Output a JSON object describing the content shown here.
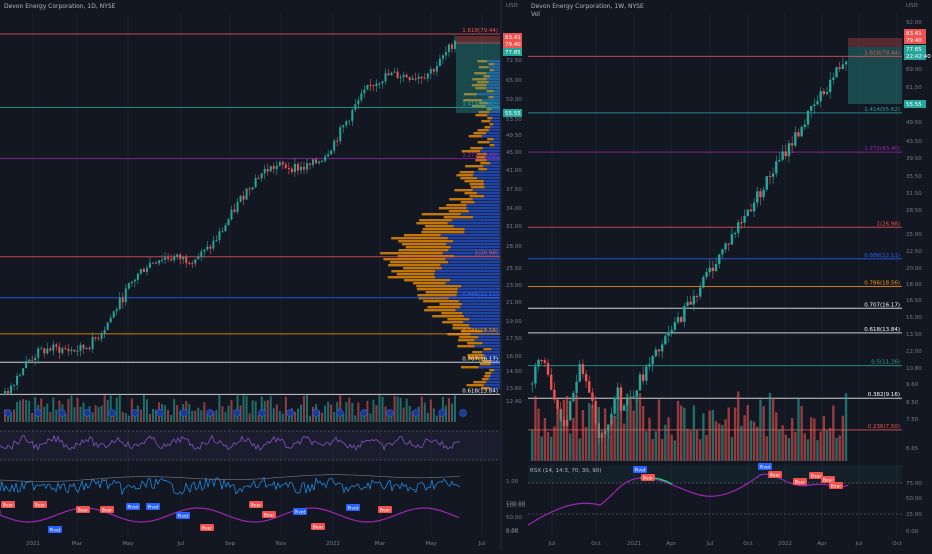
{
  "header": {
    "left_title": "Devon Energy Corporation, 1D, NYSE",
    "right_title": "Devon Energy Corporation, 1W, NYSE",
    "right_subtitle": "Vol"
  },
  "colors": {
    "background": "#131722",
    "bull": "#26a69a",
    "bear": "#ef5350",
    "grid": "#1e222d",
    "text": "#b2b5be",
    "rsi": "#7e57c2",
    "volprofile_up": "#2962ff",
    "volprofile_down": "#ff9800"
  },
  "chart_data": [
    {
      "type": "candlestick",
      "name": "left-daily",
      "xaxis_labels": [
        "2021",
        "Mar",
        "May",
        "Jul",
        "Sep",
        "Nov",
        "2022",
        "Mar",
        "May",
        "Jul"
      ],
      "yaxis_labels": [
        "USD",
        "72.50",
        "65.00",
        "59.00",
        "53.50",
        "49.50",
        "45.00",
        "41.00",
        "37.50",
        "34.00",
        "31.00",
        "28.00",
        "25.50",
        "23.00",
        "21.00",
        "19.00",
        "17.50",
        "16.00",
        "14.50",
        "13.60",
        "12.40",
        "100.00",
        "50.00",
        "0.00",
        "1.00",
        "100.00",
        "0.00"
      ],
      "price_tags": [
        {
          "label": "83.41",
          "color": "#ef5350"
        },
        {
          "label": "79.40",
          "color": "#ef5350"
        },
        {
          "label": "77.85",
          "color": "#26a69a"
        },
        {
          "label": "55.55",
          "color": "#26a69a"
        }
      ],
      "fib_levels": [
        {
          "label": "1.618(79.44)",
          "value": 79.44,
          "color": "#ef5350"
        },
        {
          "label": "1.414(55.62)",
          "value": 55.62,
          "color": "#26a69a"
        },
        {
          "label": "1.272(43.40)",
          "value": 43.4,
          "color": "#9c27b0"
        },
        {
          "label": "1(26.98)",
          "value": 26.98,
          "color": "#ef5350"
        },
        {
          "label": "0.886(22.11)",
          "value": 22.11,
          "color": "#2962ff"
        },
        {
          "label": "0.786(18.56)",
          "value": 18.56,
          "color": "#ff9800"
        },
        {
          "label": "0.707(16.17)",
          "value": 16.17,
          "color": "#ffffff"
        },
        {
          "label": "0.618(13.84)",
          "value": 13.84,
          "color": "#ffffff"
        }
      ],
      "pivot_labels": [
        "Bear",
        "Bear",
        "Pivot",
        "Bear",
        "Bear",
        "Pivot",
        "Pivot",
        "Pivot",
        "Bear",
        "Bear",
        "Bear",
        "Pivot",
        "Bear",
        "Pivot",
        "Bear"
      ],
      "ylim": [
        13.6,
        85
      ]
    },
    {
      "type": "candlestick",
      "name": "right-weekly",
      "xaxis_labels": [
        "Jul",
        "Oct",
        "2021",
        "Apr",
        "Jul",
        "Oct",
        "2022",
        "Apr",
        "Jul",
        "Oct"
      ],
      "yaxis_labels": [
        "USD",
        "92.00",
        "69.00",
        "61.50",
        "55.50",
        "49.50",
        "43.50",
        "39.50",
        "35.50",
        "31.50",
        "28.50",
        "25.00",
        "22.50",
        "20.00",
        "18.00",
        "16.50",
        "15.00",
        "13.50",
        "12.00",
        "10.80",
        "9.60",
        "8.50",
        "7.50",
        "6.65",
        "75.00",
        "50.00",
        "25.00",
        "0.00"
      ],
      "price_tags": [
        {
          "label": "83.41",
          "color": "#ef5350"
        },
        {
          "label": "79.40",
          "color": "#ef5350"
        },
        {
          "label": "77.85",
          "color": "#26a69a"
        },
        {
          "label": "22:42:40",
          "color": "#26a69a"
        },
        {
          "label": "55.55",
          "color": "#26a69a"
        }
      ],
      "fib_levels": [
        {
          "label": "1.618(79.44)",
          "value": 79.44,
          "color": "#ef5350"
        },
        {
          "label": "1.414(55.62)",
          "value": 55.62,
          "color": "#26a69a"
        },
        {
          "label": "1.272(43.40)",
          "value": 43.4,
          "color": "#9c27b0"
        },
        {
          "label": "1(26.98)",
          "value": 26.98,
          "color": "#ef5350"
        },
        {
          "label": "0.886(22.11)",
          "value": 22.11,
          "color": "#2962ff"
        },
        {
          "label": "0.786(18.56)",
          "value": 18.56,
          "color": "#ff9800"
        },
        {
          "label": "0.707(16.17)",
          "value": 16.17,
          "color": "#ffffff"
        },
        {
          "label": "0.618(13.84)",
          "value": 13.84,
          "color": "#ffffff"
        },
        {
          "label": "0.5(11.26)",
          "value": 11.26,
          "color": "#26a69a"
        },
        {
          "label": "0.382(9.16)",
          "value": 9.16,
          "color": "#ffffff"
        },
        {
          "label": "0.236(7.50)",
          "value": 7.5,
          "color": "#ef5350"
        }
      ],
      "rsi_label": "RSX (14, 14:3, 70, 30, 90)",
      "pivot_labels": [
        "Pivot",
        "Bear",
        "Pivot",
        "Bear",
        "Bear",
        "Bear",
        "Bear",
        "Bear"
      ],
      "ylim": [
        6.2,
        100
      ]
    }
  ]
}
